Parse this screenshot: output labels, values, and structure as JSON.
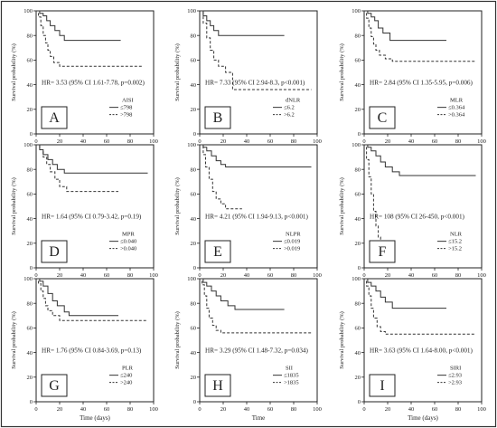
{
  "chart_data": [
    {
      "type": "line",
      "panel_letter": "A",
      "ylabel": "Survival probability (%)",
      "xlabel": "",
      "hr_text": "HR= 3.53 (95% CI 1.61-7.78, p=0.002)",
      "legend_title": "AISI",
      "xlim": [
        0,
        100
      ],
      "ylim": [
        0,
        100
      ],
      "series": [
        {
          "name": "≤798",
          "style": "solid",
          "points": [
            [
              0,
              100
            ],
            [
              3,
              98
            ],
            [
              6,
              96
            ],
            [
              9,
              92
            ],
            [
              12,
              88
            ],
            [
              16,
              84
            ],
            [
              20,
              80
            ],
            [
              24,
              76
            ],
            [
              27,
              76
            ],
            [
              72,
              76
            ]
          ]
        },
        {
          "name": ">798",
          "style": "dashed",
          "points": [
            [
              0,
              100
            ],
            [
              2,
              95
            ],
            [
              4,
              88
            ],
            [
              6,
              80
            ],
            [
              8,
              74
            ],
            [
              10,
              68
            ],
            [
              12,
              63
            ],
            [
              15,
              58
            ],
            [
              20,
              55
            ],
            [
              90,
              55
            ]
          ]
        }
      ]
    },
    {
      "type": "line",
      "panel_letter": "B",
      "ylabel": "Survival probability (%)",
      "xlabel": "",
      "hr_text": "HR= 7.33 (95% CI 2.94-8.3, p<0.001)",
      "legend_title": "dNLR",
      "xlim": [
        0,
        100
      ],
      "ylim": [
        0,
        100
      ],
      "series": [
        {
          "name": "≤6.2",
          "style": "solid",
          "points": [
            [
              0,
              100
            ],
            [
              3,
              96
            ],
            [
              6,
              92
            ],
            [
              9,
              88
            ],
            [
              12,
              84
            ],
            [
              16,
              80
            ],
            [
              72,
              80
            ]
          ]
        },
        {
          "name": ">6.2",
          "style": "dashed",
          "points": [
            [
              0,
              100
            ],
            [
              3,
              90
            ],
            [
              6,
              78
            ],
            [
              9,
              68
            ],
            [
              12,
              60
            ],
            [
              16,
              55
            ],
            [
              22,
              50
            ],
            [
              28,
              36
            ],
            [
              95,
              36
            ]
          ]
        }
      ]
    },
    {
      "type": "line",
      "panel_letter": "C",
      "ylabel": "Survival probability (%)",
      "xlabel": "",
      "hr_text": "HR= 2.84 (95% CI 1.35-5.95, p=0.006)",
      "legend_title": "MLR",
      "xlim": [
        0,
        100
      ],
      "ylim": [
        0,
        100
      ],
      "series": [
        {
          "name": "≤0.364",
          "style": "solid",
          "points": [
            [
              0,
              100
            ],
            [
              3,
              98
            ],
            [
              6,
              95
            ],
            [
              9,
              92
            ],
            [
              12,
              86
            ],
            [
              16,
              82
            ],
            [
              22,
              76
            ],
            [
              70,
              76
            ]
          ]
        },
        {
          "name": ">0.364",
          "style": "dashed",
          "points": [
            [
              0,
              100
            ],
            [
              2,
              94
            ],
            [
              4,
              86
            ],
            [
              6,
              79
            ],
            [
              8,
              73
            ],
            [
              10,
              68
            ],
            [
              13,
              64
            ],
            [
              18,
              61
            ],
            [
              24,
              59
            ],
            [
              95,
              59
            ]
          ]
        }
      ]
    },
    {
      "type": "line",
      "panel_letter": "D",
      "ylabel": "Survival probability (%)",
      "xlabel": "",
      "hr_text": "HR= 1.64 (95% CI 0.79-3.42, p=0.19)",
      "legend_title": "MPR",
      "xlim": [
        0,
        100
      ],
      "ylim": [
        0,
        100
      ],
      "series": [
        {
          "name": "≤0.040",
          "style": "solid",
          "points": [
            [
              0,
              100
            ],
            [
              3,
              96
            ],
            [
              6,
              92
            ],
            [
              10,
              88
            ],
            [
              14,
              84
            ],
            [
              18,
              80
            ],
            [
              24,
              77
            ],
            [
              95,
              77
            ]
          ]
        },
        {
          "name": ">0.040",
          "style": "dashed",
          "points": [
            [
              0,
              100
            ],
            [
              3,
              96
            ],
            [
              6,
              90
            ],
            [
              9,
              84
            ],
            [
              12,
              78
            ],
            [
              16,
              72
            ],
            [
              20,
              66
            ],
            [
              26,
              62
            ],
            [
              70,
              62
            ]
          ]
        }
      ]
    },
    {
      "type": "line",
      "panel_letter": "E",
      "ylabel": "Survival probability (%)",
      "xlabel": "",
      "hr_text": "HR= 4.21 (95% CI 1.94-9.13, p<0.001)",
      "legend_title": "NLPR",
      "xlim": [
        0,
        100
      ],
      "ylim": [
        0,
        100
      ],
      "series": [
        {
          "name": "≤0.019",
          "style": "solid",
          "points": [
            [
              0,
              100
            ],
            [
              3,
              98
            ],
            [
              6,
              95
            ],
            [
              10,
              91
            ],
            [
              14,
              87
            ],
            [
              18,
              84
            ],
            [
              22,
              82
            ],
            [
              95,
              82
            ]
          ]
        },
        {
          "name": ">0.019",
          "style": "dashed",
          "points": [
            [
              0,
              100
            ],
            [
              3,
              92
            ],
            [
              5,
              82
            ],
            [
              8,
              72
            ],
            [
              11,
              62
            ],
            [
              14,
              56
            ],
            [
              18,
              52
            ],
            [
              22,
              48
            ],
            [
              36,
              48
            ]
          ]
        }
      ]
    },
    {
      "type": "line",
      "panel_letter": "F",
      "ylabel": "Survival probability (%)",
      "xlabel": "",
      "hr_text": "HR= 108 (95% CI 26-450, p<0.001)",
      "legend_title": "NLR",
      "xlim": [
        0,
        100
      ],
      "ylim": [
        0,
        100
      ],
      "series": [
        {
          "name": "≤15.2",
          "style": "solid",
          "points": [
            [
              0,
              100
            ],
            [
              3,
              98
            ],
            [
              6,
              95
            ],
            [
              10,
              91
            ],
            [
              14,
              86
            ],
            [
              18,
              82
            ],
            [
              24,
              78
            ],
            [
              30,
              75
            ],
            [
              95,
              75
            ]
          ]
        },
        {
          "name": ">15.2",
          "style": "dashed",
          "points": [
            [
              0,
              100
            ],
            [
              2,
              88
            ],
            [
              4,
              74
            ],
            [
              6,
              60
            ],
            [
              8,
              46
            ],
            [
              10,
              34
            ],
            [
              12,
              25
            ],
            [
              14,
              21
            ],
            [
              24,
              21
            ]
          ]
        }
      ]
    },
    {
      "type": "line",
      "panel_letter": "G",
      "ylabel": "Survival probability (%)",
      "xlabel": "Time (days)",
      "hr_text": "HR= 1.76 (95% CI 0.84-3.69, p=0.13)",
      "legend_title": "PLR",
      "xlim": [
        0,
        100
      ],
      "ylim": [
        0,
        100
      ],
      "series": [
        {
          "name": "≤240",
          "style": "solid",
          "points": [
            [
              0,
              100
            ],
            [
              3,
              98
            ],
            [
              6,
              94
            ],
            [
              10,
              88
            ],
            [
              14,
              82
            ],
            [
              18,
              78
            ],
            [
              24,
              73
            ],
            [
              28,
              70
            ],
            [
              70,
              70
            ]
          ]
        },
        {
          "name": ">240",
          "style": "dashed",
          "points": [
            [
              0,
              100
            ],
            [
              2,
              96
            ],
            [
              4,
              90
            ],
            [
              6,
              84
            ],
            [
              8,
              78
            ],
            [
              10,
              74
            ],
            [
              14,
              70
            ],
            [
              20,
              66
            ],
            [
              95,
              66
            ]
          ]
        }
      ]
    },
    {
      "type": "line",
      "panel_letter": "H",
      "ylabel": "Survival probability (%)",
      "xlabel": "Time",
      "hr_text": "HR= 3.29 (95% CI 1.48-7.32, p=0.034)",
      "legend_title": "SII",
      "xlim": [
        0,
        100
      ],
      "ylim": [
        0,
        100
      ],
      "series": [
        {
          "name": "≤1835",
          "style": "solid",
          "points": [
            [
              0,
              100
            ],
            [
              3,
              97
            ],
            [
              6,
              94
            ],
            [
              10,
              90
            ],
            [
              14,
              86
            ],
            [
              18,
              82
            ],
            [
              24,
              78
            ],
            [
              30,
              75
            ],
            [
              72,
              75
            ]
          ]
        },
        {
          "name": ">1835",
          "style": "dashed",
          "points": [
            [
              0,
              100
            ],
            [
              2,
              95
            ],
            [
              4,
              86
            ],
            [
              6,
              76
            ],
            [
              8,
              68
            ],
            [
              11,
              62
            ],
            [
              14,
              58
            ],
            [
              18,
              56
            ],
            [
              95,
              56
            ]
          ]
        }
      ]
    },
    {
      "type": "line",
      "panel_letter": "I",
      "ylabel": "Survival probability (%)",
      "xlabel": "Time (days)",
      "hr_text": "HR= 3.63 (95% CI 1.64-8.00, p<0.001)",
      "legend_title": "SIRI",
      "xlim": [
        0,
        100
      ],
      "ylim": [
        0,
        100
      ],
      "series": [
        {
          "name": "≤2.93",
          "style": "solid",
          "points": [
            [
              0,
              100
            ],
            [
              3,
              97
            ],
            [
              6,
              94
            ],
            [
              10,
              90
            ],
            [
              14,
              85
            ],
            [
              18,
              81
            ],
            [
              24,
              76
            ],
            [
              70,
              76
            ]
          ]
        },
        {
          "name": ">2.93",
          "style": "dashed",
          "points": [
            [
              0,
              100
            ],
            [
              2,
              94
            ],
            [
              4,
              86
            ],
            [
              6,
              76
            ],
            [
              8,
              68
            ],
            [
              11,
              61
            ],
            [
              14,
              57
            ],
            [
              18,
              55
            ],
            [
              95,
              55
            ]
          ]
        }
      ]
    }
  ],
  "tick_values": {
    "x": [
      0,
      20,
      40,
      60,
      80,
      100
    ],
    "y": [
      0,
      20,
      40,
      60,
      80,
      100
    ]
  }
}
